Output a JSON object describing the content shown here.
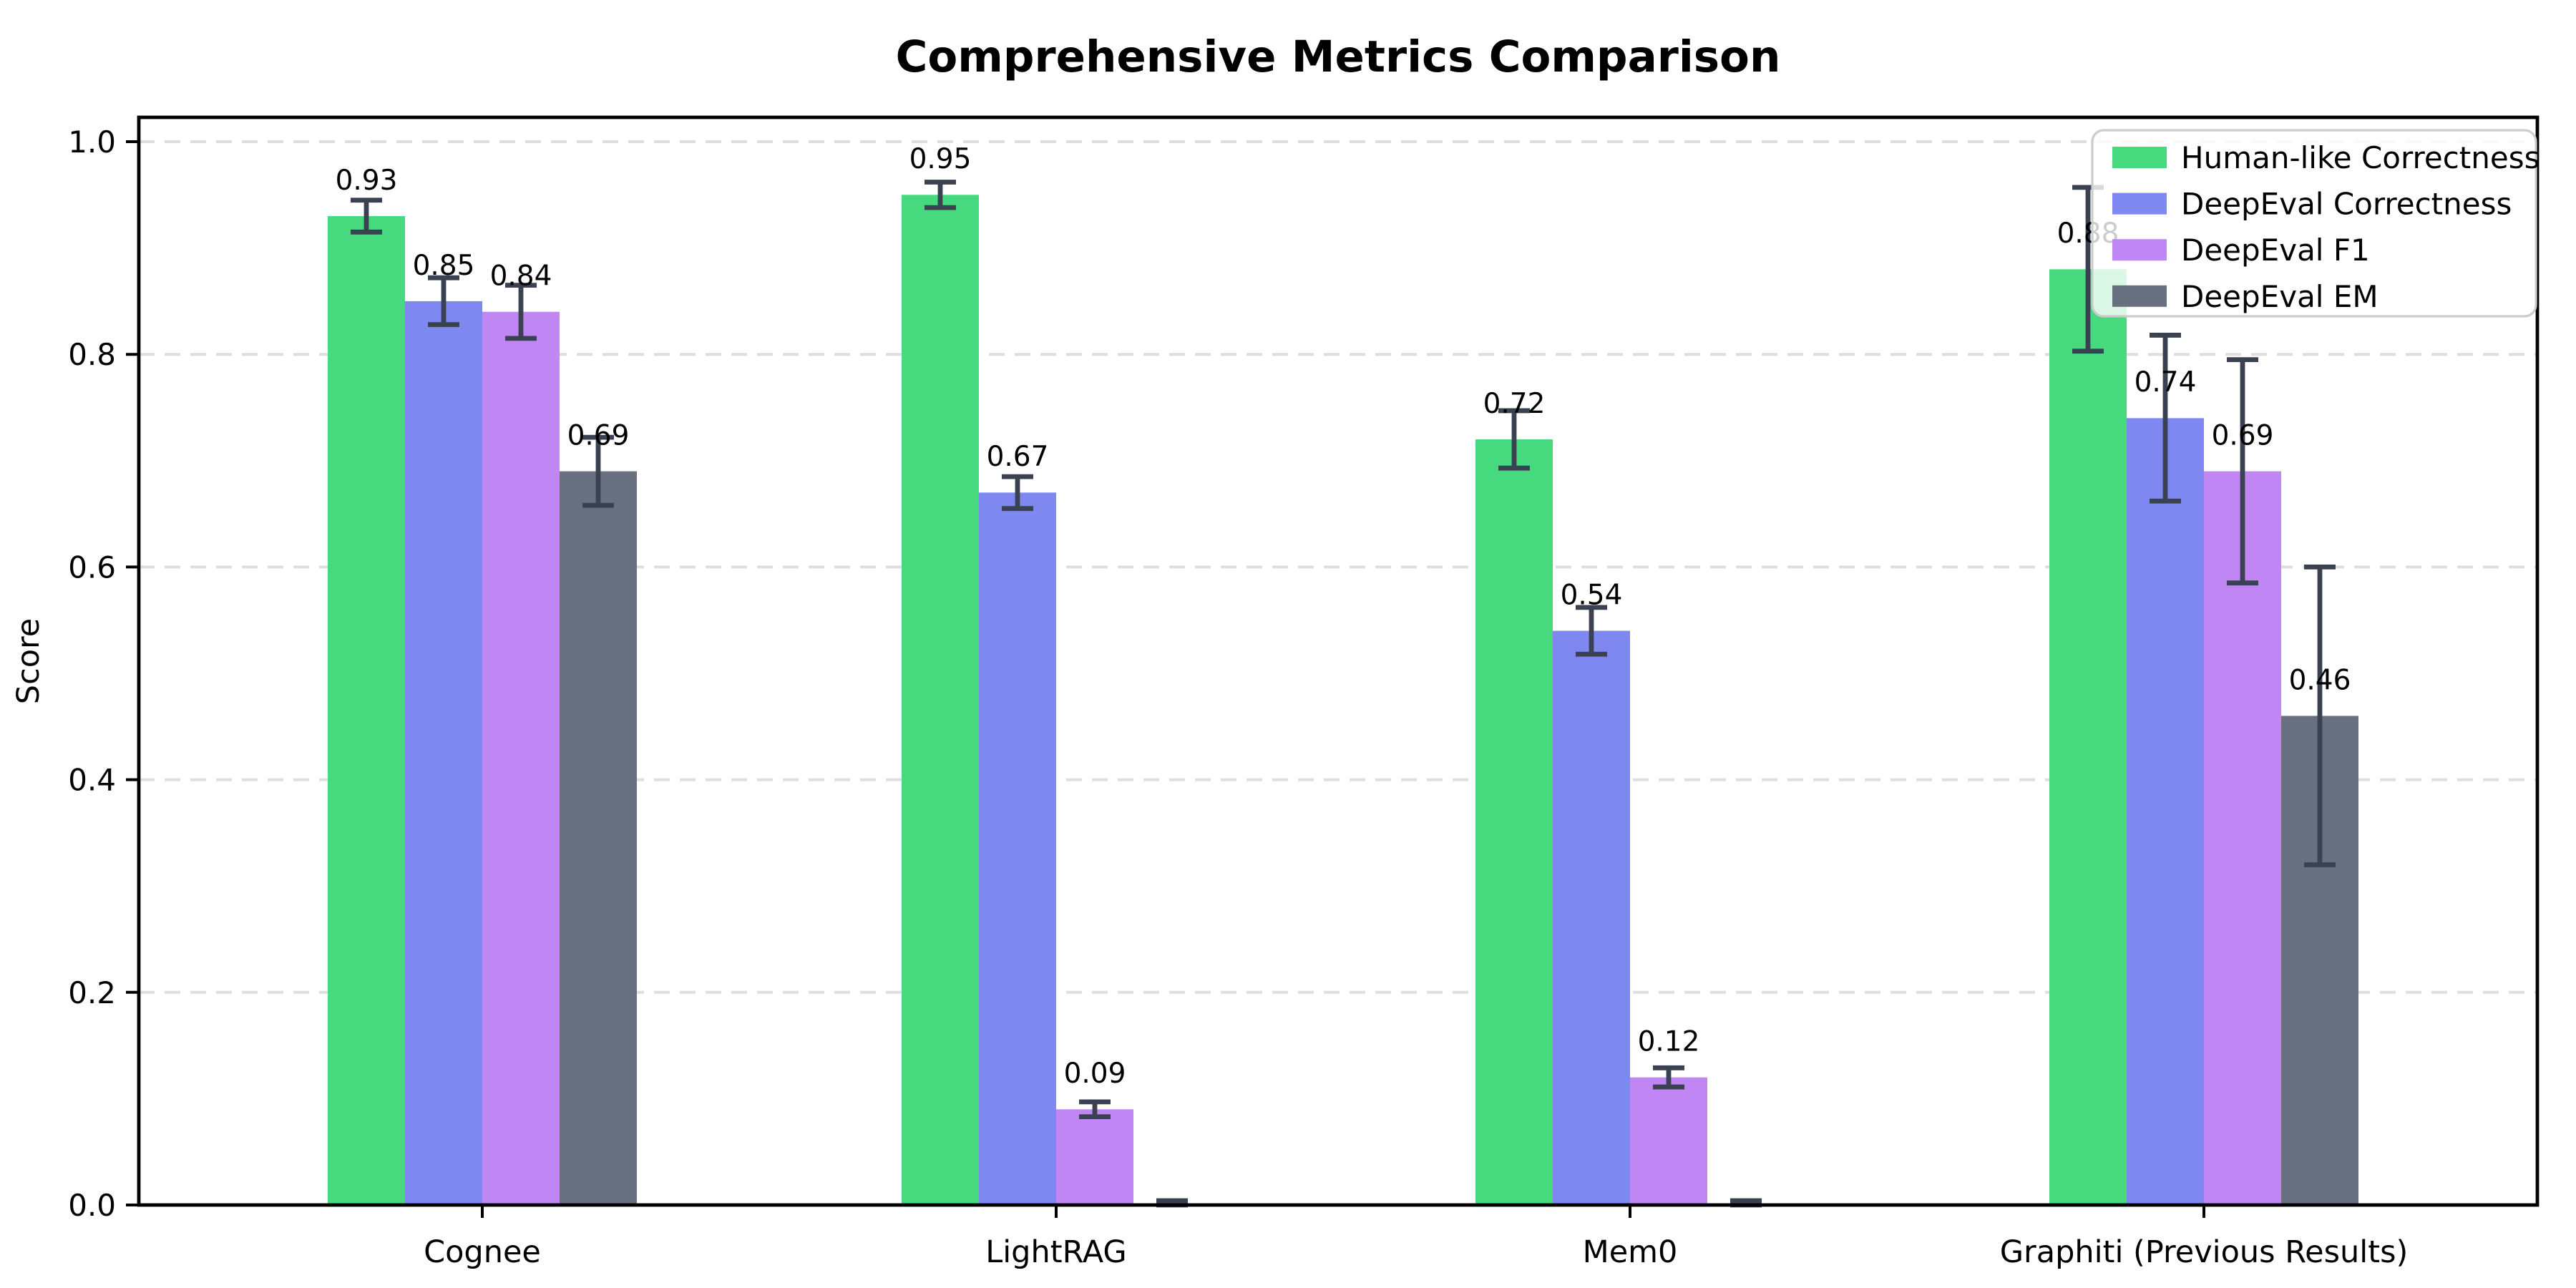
{
  "figure": {
    "background": "#ffffff"
  },
  "chart_data": {
    "type": "bar",
    "title": "Comprehensive Metrics Comparison",
    "xlabel": "",
    "ylabel": "Score",
    "categories": [
      "Cognee",
      "LightRAG",
      "Mem0",
      "Graphiti (Previous Results)"
    ],
    "series": [
      {
        "name": "Human-like Correctness",
        "color": "#46d97e",
        "values": [
          0.93,
          0.95,
          0.72,
          0.88
        ],
        "errors": [
          0.015,
          0.012,
          0.027,
          0.077
        ],
        "labels": [
          "0.93",
          "0.95",
          "0.72",
          "0.88"
        ]
      },
      {
        "name": "DeepEval Correctness",
        "color": "#7e88f0",
        "values": [
          0.85,
          0.67,
          0.54,
          0.74
        ],
        "errors": [
          0.022,
          0.015,
          0.022,
          0.078
        ],
        "labels": [
          "0.85",
          "0.67",
          "0.54",
          "0.74"
        ]
      },
      {
        "name": "DeepEval F1",
        "color": "#c086f4",
        "values": [
          0.84,
          0.09,
          0.12,
          0.69
        ],
        "errors": [
          0.025,
          0.007,
          0.009,
          0.105
        ],
        "labels": [
          "0.84",
          "0.09",
          "0.12",
          "0.69"
        ]
      },
      {
        "name": "DeepEval EM",
        "color": "#697180",
        "values": [
          0.69,
          0.0,
          0.0,
          0.46
        ],
        "errors": [
          0.032,
          0.004,
          0.004,
          0.14
        ],
        "labels": [
          "0.69",
          "",
          "",
          "0.46"
        ]
      }
    ],
    "yticks": [
      "0.0",
      "0.2",
      "0.4",
      "0.6",
      "0.8",
      "1.0"
    ],
    "ylim": [
      0.0,
      1.022
    ],
    "grid": "horizontal-dashed",
    "legend_position": "upper-right",
    "colors": {
      "error_bar": "#3a4252",
      "grid_line": "#dedede",
      "legend_border": "#cccccc",
      "legend_background": "rgba(255,255,255,0.8)",
      "axis": "#000000",
      "text": "#000000"
    }
  }
}
